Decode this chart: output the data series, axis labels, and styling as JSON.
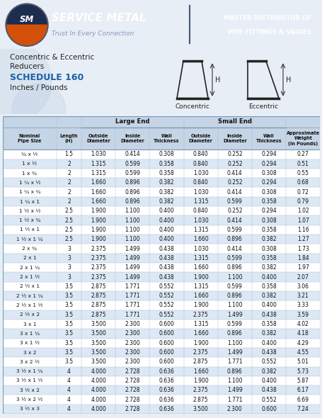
{
  "header_bg": "#1c2d4f",
  "title_blue": "#1a5fa8",
  "table_header_bg": "#c5d5e5",
  "table_alt_row_bg": "#dce8f5",
  "table_white_row_bg": "#ffffff",
  "bg_color": "#e8eef5",
  "title_line1": "Concentric & Eccentric",
  "title_line2": "Reducers",
  "title_line3": "SCHEDULE 160",
  "title_line4": "Inches / Pounds",
  "rows": [
    [
      "¾ x ½",
      "1.5",
      "1.030",
      "0.414",
      "0.308",
      "0.840",
      "0.252",
      "0.294",
      "0.27"
    ],
    [
      "1 x ½",
      "2",
      "1.315",
      "0.599",
      "0.358",
      "0.840",
      "0.252",
      "0.294",
      "0.51"
    ],
    [
      "1 x ¾",
      "2",
      "1.315",
      "0.599",
      "0.358",
      "1.030",
      "0.414",
      "0.308",
      "0.55"
    ],
    [
      "1 ¼ x ½",
      "2",
      "1.660",
      "0.896",
      "0.382",
      "0.840",
      "0.252",
      "0.294",
      "0.68"
    ],
    [
      "1 ¼ x ¾",
      "2",
      "1.660",
      "0.896",
      "0.382",
      "1.030",
      "0.414",
      "0.308",
      "0.72"
    ],
    [
      "1 ¼ x 1",
      "2",
      "1.660",
      "0.896",
      "0.382",
      "1.315",
      "0.599",
      "0.358",
      "0.79"
    ],
    [
      "1 ½ x ½",
      "2.5",
      "1.900",
      "1.100",
      "0.400",
      "0.840",
      "0.252",
      "0.294",
      "1.02"
    ],
    [
      "1 ½ x ¾",
      "2.5",
      "1.900",
      "1.100",
      "0.400",
      "1.030",
      "0.414",
      "0.308",
      "1.07"
    ],
    [
      "1 ½ x 1",
      "2.5",
      "1.900",
      "1.100",
      "0.400",
      "1.315",
      "0.599",
      "0.358",
      "1.16"
    ],
    [
      "1 ½ x 1 ¼",
      "2.5",
      "1.900",
      "1.100",
      "0.400",
      "1.660",
      "0.896",
      "0.382",
      "1.27"
    ],
    [
      "2 x ¾",
      "3",
      "2.375",
      "1.499",
      "0.438",
      "1.030",
      "0.414",
      "0.308",
      "1.73"
    ],
    [
      "2 x 1",
      "3",
      "2.375",
      "1.499",
      "0.438",
      "1.315",
      "0.599",
      "0.358",
      "1.84"
    ],
    [
      "2 x 1 ¼",
      "3",
      "2.375",
      "1.499",
      "0.438",
      "1.660",
      "0.896",
      "0.382",
      "1.97"
    ],
    [
      "2 x 1 ½",
      "3",
      "2.375",
      "1.499",
      "0.438",
      "1.900",
      "1.100",
      "0.400",
      "2.07"
    ],
    [
      "2 ½ x 1",
      "3.5",
      "2.875",
      "1.771",
      "0.552",
      "1.315",
      "0.599",
      "0.358",
      "3.06"
    ],
    [
      "2 ½ x 1 ¼",
      "3.5",
      "2.875",
      "1.771",
      "0.552",
      "1.660",
      "0.896",
      "0.382",
      "3.21"
    ],
    [
      "2 ½ x 1 ½",
      "3.5",
      "2.875",
      "1.771",
      "0.552",
      "1.900",
      "1.100",
      "0.400",
      "3.33"
    ],
    [
      "2 ½ x 2",
      "3.5",
      "2.875",
      "1.771",
      "0.552",
      "2.375",
      "1.499",
      "0.438",
      "3.59"
    ],
    [
      "3 x 1",
      "3.5",
      "3.500",
      "2.300",
      "0.600",
      "1.315",
      "0.599",
      "0.358",
      "4.02"
    ],
    [
      "3 x 1 ¼",
      "3.5",
      "3.500",
      "2.300",
      "0.600",
      "1.660",
      "0.896",
      "0.382",
      "4.18"
    ],
    [
      "3 x 1 ½",
      "3.5",
      "3.500",
      "2.300",
      "0.600",
      "1.900",
      "1.100",
      "0.400",
      "4.29"
    ],
    [
      "3 x 2",
      "3.5",
      "3.500",
      "2.300",
      "0.600",
      "2.375",
      "1.499",
      "0.438",
      "4.55"
    ],
    [
      "3 x 2 ½",
      "3.5",
      "3.500",
      "2.300",
      "0.600",
      "2.875",
      "1.771",
      "0.552",
      "5.01"
    ],
    [
      "3 ½ x 1 ¼",
      "4",
      "4.000",
      "2.728",
      "0.636",
      "1.660",
      "0.896",
      "0.382",
      "5.73"
    ],
    [
      "3 ½ x 1 ½",
      "4",
      "4.000",
      "2.728",
      "0.636",
      "1.900",
      "1.100",
      "0.400",
      "5.87"
    ],
    [
      "3 ½ x 2",
      "4",
      "4.000",
      "2.728",
      "0.636",
      "2.375",
      "1.499",
      "0.438",
      "6.17"
    ],
    [
      "3 ½ x 2 ½",
      "4",
      "4.000",
      "2.728",
      "0.636",
      "2.875",
      "1.771",
      "0.552",
      "6.69"
    ],
    [
      "3 ½ x 3",
      "4",
      "4.000",
      "2.728",
      "0.636",
      "3.500",
      "2.300",
      "0.600",
      "7.24"
    ]
  ]
}
